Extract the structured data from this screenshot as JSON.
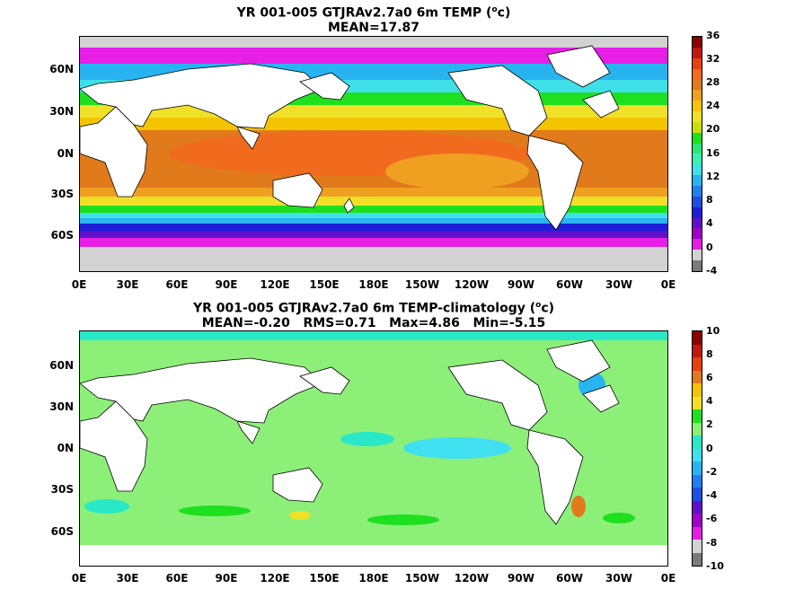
{
  "panel1": {
    "title_line1": "YR 001-005 GTJRAv2.7a0 6m TEMP (⁰c)",
    "title_line1_text": "YR 001-005 GTJRAv2.7a0 6m TEMP (",
    "title_line1_sup": "o",
    "title_line1_end": "c)",
    "title_line2": "MEAN=17.87",
    "colorbar_labels": [
      "36",
      "32",
      "28",
      "24",
      "20",
      "16",
      "12",
      "8",
      "4",
      "0",
      "-4"
    ],
    "colorbar_colors": [
      "#8b0000",
      "#c1170f",
      "#e8400f",
      "#f06b1e",
      "#e07a1a",
      "#f0a020",
      "#f5c400",
      "#f0e028",
      "#c8e000",
      "#1ee01e",
      "#28e878",
      "#3cf0b4",
      "#40e0e8",
      "#28b4f0",
      "#2080f0",
      "#1e50e0",
      "#1e1ed8",
      "#6010c8",
      "#a000c8",
      "#e61ee6",
      "#d2d2d2",
      "#7a7a7a"
    ]
  },
  "panel2": {
    "title_line1_text": "YR 001-005 GTJRAv2.7a0 6m TEMP-climatology (",
    "title_line1_sup": "o",
    "title_line1_end": "c)",
    "title_line2": "MEAN=-0.20   RMS=0.71   Max=4.86   Min=-5.15",
    "colorbar_labels": [
      "10",
      "8",
      "6",
      "4",
      "2",
      "0",
      "-2",
      "-4",
      "-6",
      "-8",
      "-10"
    ],
    "colorbar_colors": [
      "#8b0000",
      "#c1170f",
      "#e8400f",
      "#e07a1a",
      "#f5c400",
      "#f0e028",
      "#1ee01e",
      "#8cf078",
      "#28e8c8",
      "#40e0f0",
      "#28b4f0",
      "#2080f0",
      "#1e50e0",
      "#6010c8",
      "#a000c8",
      "#e61ee6",
      "#d2d2d2",
      "#7a7a7a"
    ]
  },
  "axes": {
    "y_labels": [
      "60N",
      "30N",
      "0N",
      "30S",
      "60S"
    ],
    "x_labels": [
      "0E",
      "30E",
      "60E",
      "90E",
      "120E",
      "150E",
      "180E",
      "150W",
      "120W",
      "90W",
      "60W",
      "30W",
      "0E"
    ]
  }
}
